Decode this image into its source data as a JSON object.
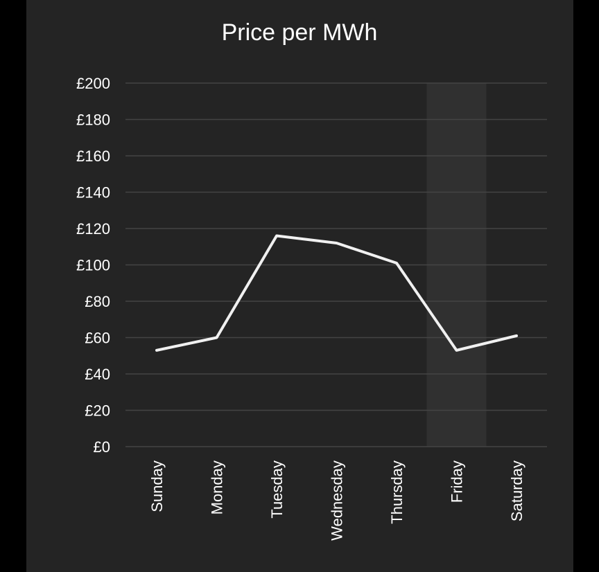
{
  "chart_data": {
    "type": "line",
    "title": "Price per MWh",
    "xlabel": "",
    "ylabel": "",
    "categories": [
      "Sunday",
      "Monday",
      "Tuesday",
      "Wednesday",
      "Thursday",
      "Friday",
      "Saturday"
    ],
    "values": [
      53,
      60,
      116,
      112,
      101,
      53,
      61
    ],
    "ylim": [
      0,
      200
    ],
    "yticks": [
      "£0",
      "£20",
      "£40",
      "£60",
      "£80",
      "£100",
      "£120",
      "£140",
      "£160",
      "£180",
      "£200"
    ],
    "ytick_values": [
      0,
      20,
      40,
      60,
      80,
      100,
      120,
      140,
      160,
      180,
      200
    ],
    "highlight_category": "Friday",
    "grid": true,
    "colors": {
      "background": "#242424",
      "page": "#000000",
      "line": "#f0f0f0",
      "grid": "#444444",
      "highlight": "#303030",
      "text": "#ffffff"
    }
  }
}
